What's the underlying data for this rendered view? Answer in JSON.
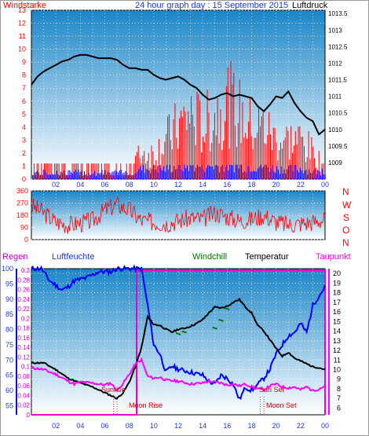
{
  "colors": {
    "wind": "#ff0000",
    "pressure": "#000000",
    "humidity": "#0000ff",
    "rain": "#cc00cc",
    "windchill": "#007700",
    "temperature": "#000000",
    "dewpoint": "#ff00ff",
    "gradient_top": "#1a86c8",
    "gradient_bottom": "#ffffff"
  },
  "header": {
    "left_label": "Windstarke",
    "title": "24 hour graph day : 15 September 2015",
    "right_label": "Luftdruck"
  },
  "panel3_labels": {
    "rain": "Regen",
    "humidity": "Luftfeuchte",
    "windchill": "Windchill",
    "temperature": "Temperatur",
    "dewpoint": "Taupunkt"
  },
  "compass_labels": [
    "N",
    "W",
    "S",
    "O",
    "N"
  ],
  "annotations": {
    "sunrise": "Sunrise",
    "sunset": "Sun Set",
    "moonrise": "Moon Rise",
    "moonset": "Moon Set"
  },
  "chart_data": [
    {
      "type": "line",
      "title": "24 hour graph day : 15 September 2015",
      "x_ticks": [
        "02",
        "04",
        "06",
        "08",
        "10",
        "12",
        "14",
        "16",
        "18",
        "20",
        "22",
        "00"
      ],
      "y_left": {
        "label": "Windstarke",
        "range": [
          0,
          13
        ],
        "ticks": [
          0,
          1,
          2,
          3,
          4,
          5,
          6,
          7,
          8,
          9,
          10,
          11,
          12,
          13
        ]
      },
      "y_right": {
        "label": "Luftdruck",
        "range": [
          1008.5,
          1013.6
        ],
        "ticks": [
          "1009",
          "1009.5",
          "1010",
          "1010.5",
          "1011",
          "1011.5",
          "1012",
          "1012.5",
          "1013",
          "1013.5"
        ]
      },
      "series": [
        {
          "name": "Luftdruck",
          "x": [
            0.0,
            0.5,
            1.0,
            1.5,
            2.0,
            2.5,
            3.0,
            3.5,
            4.0,
            4.5,
            5.0,
            5.5,
            6.0,
            6.5,
            7.0,
            7.5,
            8.0,
            8.5,
            9.0,
            9.5,
            10.0,
            10.5,
            11.0,
            11.5,
            12.0,
            12.5,
            13.0,
            13.5,
            14.0,
            14.5,
            15.0,
            15.5,
            16.0,
            16.5,
            17.0,
            17.5,
            18.0,
            18.5,
            19.0,
            19.5,
            20.0,
            20.5,
            21.0,
            21.5,
            22.0,
            22.5,
            23.0,
            23.5,
            24.0
          ],
          "values": [
            1011.35,
            1011.6,
            1011.75,
            1011.85,
            1011.95,
            1012.05,
            1012.1,
            1012.2,
            1012.25,
            1012.25,
            1012.2,
            1012.15,
            1012.15,
            1012.15,
            1012.1,
            1011.95,
            1011.85,
            1011.85,
            1011.8,
            1011.8,
            1011.65,
            1011.55,
            1011.5,
            1011.55,
            1011.6,
            1011.5,
            1011.35,
            1011.25,
            1011.05,
            1010.9,
            1010.95,
            1011.05,
            1011.1,
            1011.0,
            1011.05,
            1011.0,
            1010.95,
            1010.7,
            1010.55,
            1010.75,
            1011.0,
            1010.95,
            1011.15,
            1010.8,
            1010.55,
            1010.35,
            1010.25,
            1009.85,
            1010.0
          ]
        },
        {
          "name": "Windstarke",
          "x": [
            0,
            1,
            2,
            3,
            4,
            5,
            6,
            7,
            8,
            9,
            10,
            11,
            12,
            13,
            14,
            15,
            16,
            17,
            18,
            19,
            20,
            21,
            22,
            23,
            24
          ],
          "values": [
            1,
            1,
            1,
            1,
            1,
            1,
            1,
            1,
            1,
            2,
            2,
            3,
            4,
            5,
            4,
            5,
            6,
            5,
            4,
            4,
            3,
            3,
            3,
            2,
            1
          ]
        },
        {
          "name": "Windstarke (blue)",
          "x": [
            0,
            1,
            2,
            3,
            4,
            5,
            6,
            7,
            8,
            9,
            10,
            11,
            12,
            13,
            14,
            15,
            16,
            17,
            18,
            19,
            20,
            21,
            22,
            23,
            24
          ],
          "values": [
            0.5,
            0.5,
            0.5,
            0.5,
            0.5,
            0.5,
            0.5,
            0.5,
            0.5,
            0.8,
            0.8,
            0.8,
            1,
            1,
            1,
            1,
            1,
            1,
            1,
            1,
            0.8,
            0.8,
            0.8,
            0.6,
            0.5
          ]
        }
      ]
    },
    {
      "type": "line",
      "x_ticks": [
        "02",
        "04",
        "06",
        "08",
        "10",
        "12",
        "14",
        "16",
        "18",
        "20",
        "22",
        "00"
      ],
      "y_left": {
        "range": [
          0,
          360
        ],
        "ticks": [
          0,
          90,
          180,
          270,
          360
        ]
      },
      "series": [
        {
          "name": "Windrichtung",
          "x": [
            0,
            1,
            2,
            3,
            4,
            5,
            6,
            7,
            8,
            9,
            10,
            11,
            12,
            13,
            14,
            15,
            16,
            17,
            18,
            19,
            20,
            21,
            22,
            23,
            24
          ],
          "values": [
            250,
            200,
            130,
            110,
            120,
            140,
            220,
            260,
            220,
            140,
            130,
            120,
            140,
            160,
            150,
            200,
            170,
            140,
            150,
            180,
            130,
            110,
            120,
            130,
            150
          ]
        }
      ]
    },
    {
      "type": "line",
      "x_ticks": [
        "02",
        "04",
        "06",
        "08",
        "10",
        "12",
        "14",
        "16",
        "18",
        "20",
        "22",
        "00"
      ],
      "y_left_humidity": {
        "label": "Luftfeuchte",
        "range": [
          52,
          100
        ],
        "ticks": [
          55,
          60,
          65,
          70,
          75,
          80,
          85,
          90,
          95,
          100
        ]
      },
      "y_left_rain": {
        "label": "Regen",
        "range": [
          0,
          0.3
        ],
        "ticks": [
          "0",
          "0.02",
          "0.04",
          "0.06",
          "0.08",
          "0.1",
          "0.12",
          "0.14",
          "0.16",
          "0.18",
          "0.2",
          "0.22",
          "0.24",
          "0.26",
          "0.28",
          "0.3"
        ]
      },
      "y_right": {
        "label": "Temperatur",
        "range": [
          5.3,
          20.5
        ],
        "ticks": [
          "6",
          "7",
          "8",
          "9",
          "10",
          "11",
          "12",
          "13",
          "14",
          "15",
          "16",
          "17",
          "18",
          "19",
          "20"
        ]
      },
      "series": [
        {
          "name": "Luftfeuchte",
          "x": [
            0,
            0.8,
            1.5,
            2.5,
            3.0,
            3.5,
            4.5,
            5.5,
            6.5,
            7.0,
            7.5,
            8.0,
            8.5,
            9.0,
            9.5,
            10.0,
            10.5,
            11.0,
            11.5,
            12.0,
            13.0,
            14.0,
            14.5,
            15.0,
            15.5,
            16.0,
            16.5,
            17.0,
            17.5,
            18.0,
            18.5,
            19.0,
            19.5,
            20.0,
            20.5,
            21.0,
            21.5,
            22.0,
            22.5,
            23.0,
            23.5,
            24.0
          ],
          "values": [
            100,
            100,
            96,
            93,
            94,
            96,
            97,
            99,
            99,
            100,
            100,
            100,
            100,
            100,
            88,
            75,
            72,
            66,
            68,
            67,
            66,
            65,
            63,
            62,
            65,
            64,
            62,
            57,
            61,
            60,
            62,
            64,
            67,
            72,
            75,
            78,
            79,
            82,
            79,
            88,
            91,
            94
          ]
        },
        {
          "name": "Temperatur",
          "x": [
            0,
            1.0,
            2.0,
            3.0,
            4.0,
            5.0,
            6.0,
            6.5,
            7.0,
            7.5,
            8.0,
            8.5,
            9.0,
            9.5,
            10.0,
            10.5,
            11.0,
            11.5,
            12.0,
            12.5,
            13.0,
            13.5,
            14.0,
            14.5,
            15.0,
            15.5,
            16.0,
            16.5,
            17.0,
            17.5,
            18.0,
            18.5,
            19.0,
            19.5,
            20.0,
            20.5,
            21.0,
            21.5,
            22.0,
            22.5,
            23.0,
            23.5,
            24.0
          ],
          "values": [
            10.7,
            10.7,
            10.0,
            9.1,
            8.6,
            8.2,
            7.6,
            7.3,
            7.0,
            7.6,
            8.7,
            10.3,
            12.3,
            15.5,
            14.7,
            14.6,
            14.2,
            13.9,
            14.2,
            14.3,
            14.5,
            14.8,
            15.2,
            15.9,
            16.5,
            16.4,
            16.6,
            17.0,
            17.3,
            16.5,
            15.9,
            14.6,
            14.0,
            13.1,
            12.2,
            11.4,
            11.8,
            11.2,
            10.9,
            10.6,
            10.3,
            10.2,
            10.0
          ]
        },
        {
          "name": "Taupunkt",
          "x": [
            0,
            1.0,
            2.0,
            3.0,
            3.5,
            4.0,
            5.0,
            6.0,
            6.5,
            7.0,
            7.5,
            8.0,
            8.5,
            9.0,
            9.5,
            10.0,
            10.5,
            11.0,
            12.0,
            13.0,
            14.0,
            14.5,
            15.0,
            15.5,
            16.0,
            16.5,
            17.0,
            17.5,
            18.0,
            18.5,
            19.0,
            19.5,
            20.0,
            20.5,
            21.0,
            21.5,
            22.0,
            22.5,
            23.0,
            23.5,
            24.0
          ],
          "values": [
            10.2,
            10.0,
            9.5,
            8.8,
            8.5,
            8.7,
            8.6,
            8.4,
            8.6,
            7.8,
            8.6,
            9.5,
            10.6,
            11.0,
            9.3,
            9.1,
            9.2,
            8.9,
            8.8,
            8.5,
            8.6,
            8.8,
            8.7,
            8.6,
            8.4,
            8.5,
            8.3,
            8.5,
            8.2,
            8.0,
            7.9,
            8.3,
            8.5,
            8.2,
            8.1,
            8.2,
            7.9,
            8.2,
            7.8,
            8.0,
            8.3
          ]
        },
        {
          "name": "Windchill",
          "x": [
            12.0,
            12.5,
            15.0,
            15.5,
            16.0
          ],
          "values": [
            13.8,
            14.0,
            14.4,
            15.2,
            16.4
          ]
        },
        {
          "name": "Regen",
          "x": [
            0,
            8.6,
            8.6,
            24.0,
            24.0
          ],
          "values": [
            0,
            0,
            0.3,
            0.3,
            0
          ]
        }
      ]
    }
  ]
}
